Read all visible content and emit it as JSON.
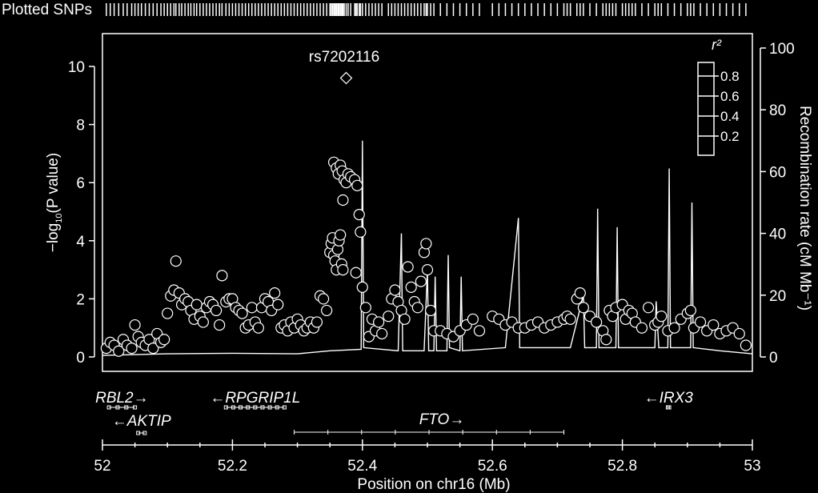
{
  "header": {
    "plotted_snps_label": "Plotted SNPs"
  },
  "chart_data": {
    "type": "scatter",
    "xlabel": "Position on chr16 (Mb)",
    "ylabel_left": "-log10(P value)",
    "ylabel_left_parts": {
      "pre": "−log",
      "sub": "10",
      "post": "(P value)"
    },
    "ylabel_right": "Recombination rate (cM Mb⁻¹)",
    "xlim": [
      52.0,
      53.0
    ],
    "ylim_left": [
      0,
      11
    ],
    "ylim_right": [
      0,
      104.8
    ],
    "x_ticks": [
      52,
      52.2,
      52.4,
      52.6,
      52.8,
      53
    ],
    "x_tick_labels": [
      "52",
      "52.2",
      "52.4",
      "52.6",
      "52.8",
      "53"
    ],
    "y_left_ticks": [
      0,
      2,
      4,
      6,
      8,
      10
    ],
    "y_left_tick_labels": [
      "0",
      "2",
      "4",
      "6",
      "8",
      "10"
    ],
    "y_right_ticks": [
      0,
      20,
      40,
      60,
      80,
      100
    ],
    "y_right_tick_labels": [
      "0",
      "20",
      "40",
      "60",
      "80",
      "100"
    ],
    "top_snp": {
      "label": "rs7202116",
      "x": 52.375,
      "y": 9.6
    },
    "legend": {
      "title": "r²",
      "labels": [
        "0.8",
        "0.6",
        "0.4",
        "0.2"
      ],
      "placement": "top-right"
    },
    "snps": [
      [
        52.006,
        0.3
      ],
      [
        52.012,
        0.5
      ],
      [
        52.018,
        0.4
      ],
      [
        52.025,
        0.2
      ],
      [
        52.032,
        0.6
      ],
      [
        52.038,
        0.4
      ],
      [
        52.045,
        0.3
      ],
      [
        52.05,
        1.1
      ],
      [
        52.055,
        0.7
      ],
      [
        52.06,
        0.5
      ],
      [
        52.066,
        0.4
      ],
      [
        52.072,
        0.6
      ],
      [
        52.078,
        0.3
      ],
      [
        52.084,
        0.8
      ],
      [
        52.09,
        0.5
      ],
      [
        52.095,
        0.6
      ],
      [
        52.1,
        1.5
      ],
      [
        52.105,
        2.1
      ],
      [
        52.11,
        2.3
      ],
      [
        52.113,
        3.3
      ],
      [
        52.118,
        2.2
      ],
      [
        52.122,
        1.8
      ],
      [
        52.127,
        2.0
      ],
      [
        52.132,
        1.9
      ],
      [
        52.136,
        1.6
      ],
      [
        52.141,
        1.3
      ],
      [
        52.145,
        1.8
      ],
      [
        52.15,
        1.4
      ],
      [
        52.155,
        1.2
      ],
      [
        52.16,
        1.7
      ],
      [
        52.165,
        1.9
      ],
      [
        52.17,
        1.8
      ],
      [
        52.175,
        1.6
      ],
      [
        52.18,
        1.1
      ],
      [
        52.184,
        2.8
      ],
      [
        52.19,
        1.9
      ],
      [
        52.195,
        2.0
      ],
      [
        52.2,
        2.0
      ],
      [
        52.205,
        1.7
      ],
      [
        52.21,
        1.6
      ],
      [
        52.215,
        1.5
      ],
      [
        52.22,
        1.0
      ],
      [
        52.225,
        1.1
      ],
      [
        52.23,
        1.7
      ],
      [
        52.235,
        1.2
      ],
      [
        52.24,
        1.0
      ],
      [
        52.245,
        1.7
      ],
      [
        52.25,
        2.0
      ],
      [
        52.255,
        1.9
      ],
      [
        52.26,
        1.6
      ],
      [
        52.265,
        2.2
      ],
      [
        52.27,
        1.8
      ],
      [
        52.275,
        1.0
      ],
      [
        52.28,
        1.1
      ],
      [
        52.285,
        0.9
      ],
      [
        52.29,
        1.2
      ],
      [
        52.295,
        1.0
      ],
      [
        52.3,
        1.3
      ],
      [
        52.305,
        1.1
      ],
      [
        52.31,
        0.9
      ],
      [
        52.315,
        1.0
      ],
      [
        52.32,
        1.2
      ],
      [
        52.325,
        1.0
      ],
      [
        52.33,
        1.2
      ],
      [
        52.335,
        2.1
      ],
      [
        52.34,
        2.0
      ],
      [
        52.345,
        1.6
      ],
      [
        52.35,
        3.6
      ],
      [
        52.352,
        3.9
      ],
      [
        52.354,
        4.1
      ],
      [
        52.356,
        3.5
      ],
      [
        52.358,
        3.3
      ],
      [
        52.36,
        3.0
      ],
      [
        52.362,
        3.7
      ],
      [
        52.364,
        4.0
      ],
      [
        52.366,
        4.2
      ],
      [
        52.368,
        3.2
      ],
      [
        52.37,
        3.0
      ],
      [
        52.356,
        6.7
      ],
      [
        52.36,
        6.5
      ],
      [
        52.363,
        6.3
      ],
      [
        52.366,
        6.6
      ],
      [
        52.369,
        6.4
      ],
      [
        52.372,
        6.1
      ],
      [
        52.375,
        6.0
      ],
      [
        52.378,
        6.3
      ],
      [
        52.382,
        6.2
      ],
      [
        52.388,
        6.1
      ],
      [
        52.392,
        5.9
      ],
      [
        52.37,
        5.4
      ],
      [
        52.395,
        4.9
      ],
      [
        52.397,
        4.3
      ],
      [
        52.4,
        2.4
      ],
      [
        52.39,
        2.9
      ],
      [
        52.405,
        1.7
      ],
      [
        52.41,
        0.7
      ],
      [
        52.415,
        1.3
      ],
      [
        52.42,
        0.9
      ],
      [
        52.425,
        1.2
      ],
      [
        52.43,
        0.8
      ],
      [
        52.44,
        1.4
      ],
      [
        52.445,
        2.0
      ],
      [
        52.45,
        2.3
      ],
      [
        52.455,
        1.9
      ],
      [
        52.46,
        1.6
      ],
      [
        52.465,
        1.3
      ],
      [
        52.47,
        3.1
      ],
      [
        52.475,
        2.4
      ],
      [
        52.48,
        1.9
      ],
      [
        52.485,
        1.7
      ],
      [
        52.49,
        2.6
      ],
      [
        52.495,
        3.6
      ],
      [
        52.498,
        3.9
      ],
      [
        52.5,
        3.0
      ],
      [
        52.505,
        1.6
      ],
      [
        52.51,
        0.9
      ],
      [
        52.52,
        0.9
      ],
      [
        52.53,
        0.8
      ],
      [
        52.54,
        0.7
      ],
      [
        52.55,
        0.9
      ],
      [
        52.56,
        1.1
      ],
      [
        52.57,
        1.3
      ],
      [
        52.58,
        0.9
      ],
      [
        52.6,
        1.4
      ],
      [
        52.61,
        1.3
      ],
      [
        52.62,
        1.1
      ],
      [
        52.63,
        1.2
      ],
      [
        52.64,
        1.0
      ],
      [
        52.65,
        1.0
      ],
      [
        52.66,
        1.1
      ],
      [
        52.67,
        1.2
      ],
      [
        52.68,
        1.0
      ],
      [
        52.69,
        1.1
      ],
      [
        52.7,
        1.2
      ],
      [
        52.71,
        1.3
      ],
      [
        52.715,
        1.4
      ],
      [
        52.72,
        1.3
      ],
      [
        52.73,
        2.0
      ],
      [
        52.735,
        2.2
      ],
      [
        52.74,
        1.7
      ],
      [
        52.75,
        1.4
      ],
      [
        52.76,
        1.2
      ],
      [
        52.77,
        0.9
      ],
      [
        52.775,
        0.6
      ],
      [
        52.78,
        1.6
      ],
      [
        52.785,
        1.4
      ],
      [
        52.79,
        1.7
      ],
      [
        52.8,
        1.8
      ],
      [
        52.805,
        1.3
      ],
      [
        52.81,
        1.6
      ],
      [
        52.815,
        1.5
      ],
      [
        52.82,
        1.2
      ],
      [
        52.83,
        1.0
      ],
      [
        52.84,
        1.7
      ],
      [
        52.85,
        1.1
      ],
      [
        52.855,
        1.2
      ],
      [
        52.86,
        1.4
      ],
      [
        52.87,
        0.9
      ],
      [
        52.88,
        1.0
      ],
      [
        52.89,
        1.3
      ],
      [
        52.9,
        1.5
      ],
      [
        52.905,
        1.6
      ],
      [
        52.91,
        1.0
      ],
      [
        52.92,
        1.2
      ],
      [
        52.93,
        0.9
      ],
      [
        52.94,
        1.1
      ],
      [
        52.95,
        0.8
      ],
      [
        52.96,
        0.9
      ],
      [
        52.97,
        1.0
      ],
      [
        52.98,
        0.8
      ],
      [
        52.99,
        0.4
      ]
    ],
    "recombination": [
      [
        52.0,
        0.5
      ],
      [
        52.1,
        1.0
      ],
      [
        52.2,
        1.2
      ],
      [
        52.3,
        1.0
      ],
      [
        52.35,
        2.0
      ],
      [
        52.398,
        2.5
      ],
      [
        52.4,
        70.0
      ],
      [
        52.402,
        3.0
      ],
      [
        52.455,
        2.0
      ],
      [
        52.46,
        40.0
      ],
      [
        52.462,
        2.0
      ],
      [
        52.495,
        2.0
      ],
      [
        52.5,
        28.0
      ],
      [
        52.502,
        2.0
      ],
      [
        52.51,
        2.0
      ],
      [
        52.512,
        26.0
      ],
      [
        52.514,
        2.0
      ],
      [
        52.53,
        2.0
      ],
      [
        52.532,
        33.0
      ],
      [
        52.534,
        3.0
      ],
      [
        52.55,
        2.0
      ],
      [
        52.552,
        26.0
      ],
      [
        52.554,
        2.0
      ],
      [
        52.62,
        3.0
      ],
      [
        52.64,
        45.0
      ],
      [
        52.642,
        3.0
      ],
      [
        52.72,
        3.0
      ],
      [
        52.74,
        20.0
      ],
      [
        52.742,
        3.0
      ],
      [
        52.76,
        3.0
      ],
      [
        52.762,
        48.0
      ],
      [
        52.764,
        3.0
      ],
      [
        52.79,
        3.0
      ],
      [
        52.792,
        42.0
      ],
      [
        52.794,
        3.0
      ],
      [
        52.85,
        3.0
      ],
      [
        52.852,
        18.0
      ],
      [
        52.856,
        3.0
      ],
      [
        52.87,
        3.0
      ],
      [
        52.872,
        61.0
      ],
      [
        52.874,
        3.0
      ],
      [
        52.905,
        3.0
      ],
      [
        52.907,
        50.0
      ],
      [
        52.909,
        3.0
      ],
      [
        52.95,
        2.0
      ],
      [
        53.0,
        1.0
      ]
    ],
    "genes": [
      {
        "name": "RBL2",
        "label": "RBL2→",
        "start": 52.01,
        "end": 52.05,
        "row": 0
      },
      {
        "name": "RPGRIP1L",
        "label": "←RPGRIP1L",
        "start": 52.19,
        "end": 52.28,
        "row": 0
      },
      {
        "name": "IRX3",
        "label": "←IRX3",
        "start": 52.87,
        "end": 52.872,
        "row": 0
      },
      {
        "name": "AKTIP",
        "label": "←AKTIP",
        "start": 52.055,
        "end": 52.065,
        "row": 1
      },
      {
        "name": "FTO",
        "label": "FTO→",
        "start": 52.295,
        "end": 52.71,
        "row": 2
      }
    ]
  }
}
